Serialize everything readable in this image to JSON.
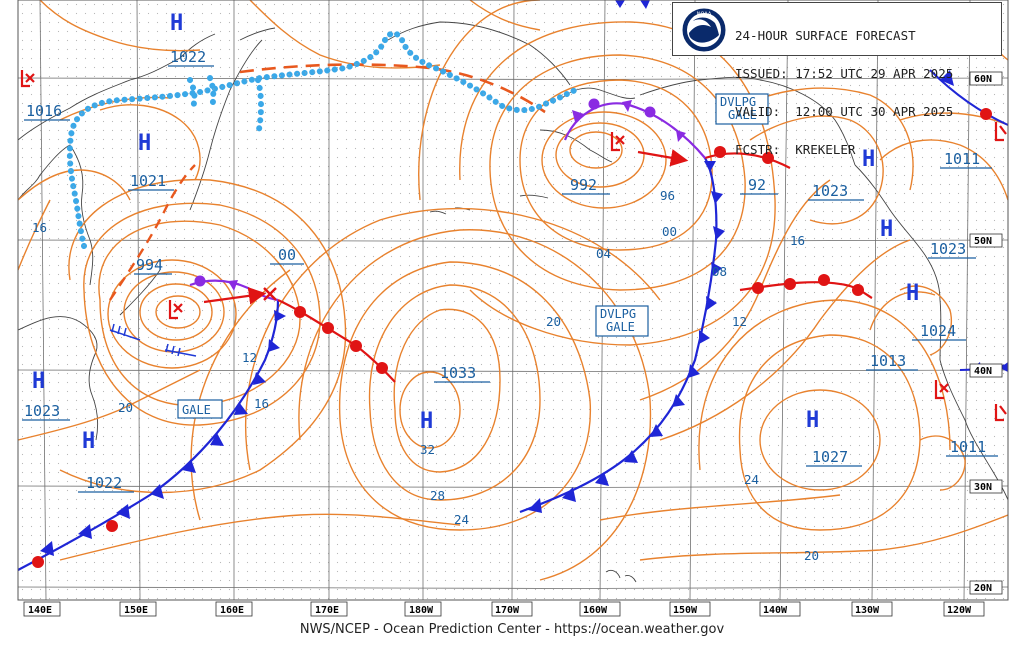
{
  "header": {
    "title_line": "24-HOUR SURFACE FORECAST",
    "issued_line": "ISSUED: 17:52 UTC 29 APR 2025",
    "valid_line": "VALID:  12:00 UTC 30 APR 2025",
    "forecaster_line": "FCSTR:  KREKELER",
    "logo_text": "NOAA"
  },
  "footer": {
    "credit": "NWS/NCEP - Ocean Prediction Center - https://ocean.weather.gov"
  },
  "longitude_labels": [
    "140E",
    "150E",
    "160E",
    "170E",
    "180W",
    "170W",
    "160W",
    "150W",
    "140W",
    "130W",
    "120W"
  ],
  "latitude_labels": [
    "60N",
    "50N",
    "40N",
    "30N",
    "20N"
  ],
  "pressure_centers": [
    {
      "type": "H",
      "value": "1022"
    },
    {
      "type": "H",
      "value": "1021"
    },
    {
      "type": "L",
      "value": "994"
    },
    {
      "type": "L",
      "value": "992"
    },
    {
      "type": "H",
      "value": "1023"
    },
    {
      "type": "H",
      "value": "1022"
    },
    {
      "type": "H",
      "value": "1033"
    },
    {
      "type": "H",
      "value": "1027"
    },
    {
      "type": "H",
      "value": "1023"
    },
    {
      "type": "H",
      "value": "1023"
    },
    {
      "type": "H",
      "value": "1024"
    },
    {
      "type": "L",
      "value": "1011"
    },
    {
      "type": "L",
      "value": "1011"
    },
    {
      "type": "L",
      "value": "1016"
    }
  ],
  "boxed_values": [
    "1016",
    "1022",
    "1021",
    "994",
    "00",
    "1023",
    "1022",
    "1033",
    "1027",
    "992",
    "92",
    "1023",
    "1023",
    "1024",
    "1013",
    "1011",
    "1011"
  ],
  "isobar_labels": [
    "16",
    "12",
    "16",
    "20",
    "32",
    "28",
    "24",
    "96",
    "00",
    "04",
    "08",
    "12",
    "16",
    "20",
    "20",
    "24"
  ],
  "warnings": [
    "GALE",
    "DVLPG GALE",
    "DVLPG GALE"
  ],
  "colors": {
    "isobar": "#e8822e",
    "label": "#1a5fa0",
    "cold_front": "#1f26d6",
    "warm_front": "#e01414",
    "occluded": "#8a2be2",
    "trough": "#e8581e",
    "ice": "#3aa8e8",
    "high": "#1f3ad6",
    "low": "#e01414",
    "grid": "#666666"
  }
}
